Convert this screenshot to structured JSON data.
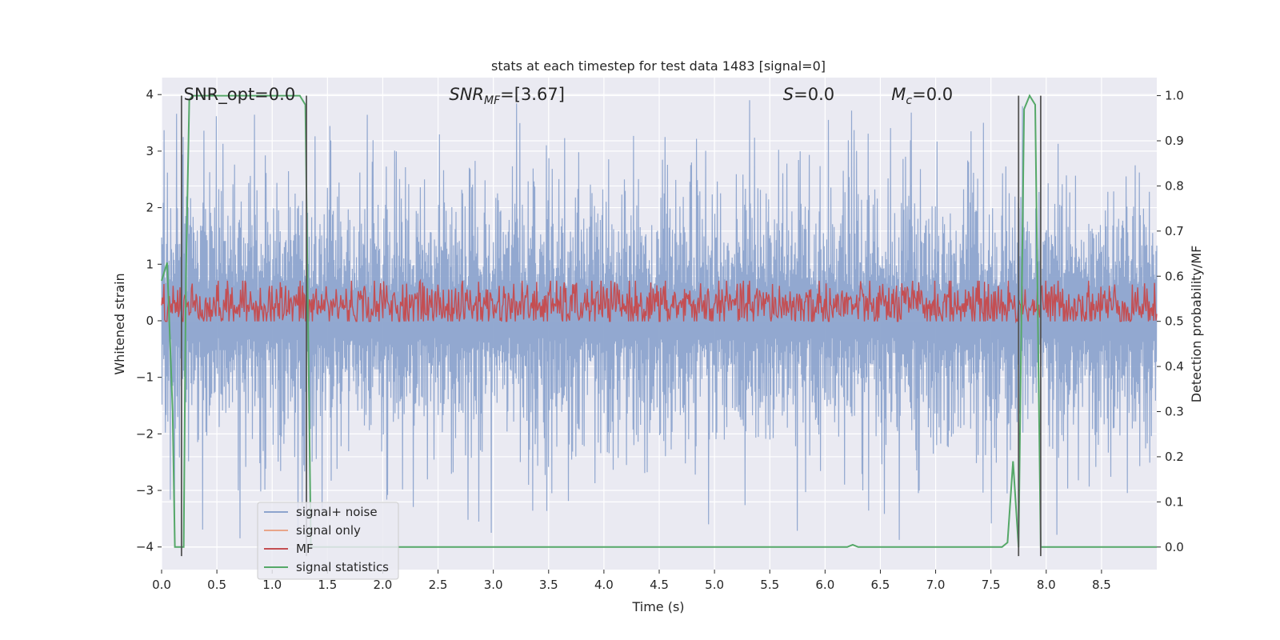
{
  "chart_data": {
    "type": "line",
    "title": "stats at each timestep for test data 1483 [signal=0]",
    "xlabel": "Time (s)",
    "ylabel": "Whitened strain",
    "y2label": "Detection probability/MF",
    "xlim": [
      0.0,
      9.0
    ],
    "ylim": [
      -4.4,
      4.3
    ],
    "y2lim": [
      -0.05,
      1.04
    ],
    "xticks": [
      "0.0",
      "0.5",
      "1.0",
      "1.5",
      "2.0",
      "2.5",
      "3.0",
      "3.5",
      "4.0",
      "4.5",
      "5.0",
      "5.5",
      "6.0",
      "6.5",
      "7.0",
      "7.5",
      "8.0",
      "8.5"
    ],
    "xtick_values": [
      0.0,
      0.5,
      1.0,
      1.5,
      2.0,
      2.5,
      3.0,
      3.5,
      4.0,
      4.5,
      5.0,
      5.5,
      6.0,
      6.5,
      7.0,
      7.5,
      8.0,
      8.5
    ],
    "yticks": [
      "−4",
      "−3",
      "−2",
      "−1",
      "0",
      "1",
      "2",
      "3",
      "4"
    ],
    "ytick_values": [
      -4,
      -3,
      -2,
      -1,
      0,
      1,
      2,
      3,
      4
    ],
    "y2ticks": [
      "0.0",
      "0.1",
      "0.2",
      "0.3",
      "0.4",
      "0.5",
      "0.6",
      "0.7",
      "0.8",
      "0.9",
      "1.0"
    ],
    "y2tick_values": [
      0.0,
      0.1,
      0.2,
      0.3,
      0.4,
      0.5,
      0.6,
      0.7,
      0.8,
      0.9,
      1.0
    ],
    "grid": true,
    "legend_position": "lower-left",
    "annotations": [
      {
        "text": "SNR_opt=0.0",
        "x": 0.2,
        "y": 4.0,
        "italic": false
      },
      {
        "text": "SNR_MF=[3.67]",
        "x": 2.6,
        "y": 4.0,
        "italic": true
      },
      {
        "text": "S=0.0",
        "x": 5.62,
        "y": 4.0,
        "italic": true
      },
      {
        "text": "M_c=0.0",
        "x": 6.6,
        "y": 4.0,
        "italic": true
      }
    ],
    "series": [
      {
        "name": "signal+ noise",
        "color": "#8da4cd",
        "axis": "left",
        "style": "dense-noise",
        "x_range": [
          0.0,
          9.0
        ],
        "envelope_typical": [
          -1.7,
          2.2
        ],
        "peak_extremes": [
          -4.0,
          3.9
        ]
      },
      {
        "name": "signal only",
        "color": "#e8a58a",
        "axis": "left",
        "values": []
      },
      {
        "name": "MF",
        "color": "#c44e52",
        "axis": "left",
        "style": "dense-noise",
        "x_range": [
          0.0,
          9.0
        ],
        "range": [
          0.0,
          1.0
        ],
        "mean": 0.35
      },
      {
        "name": "signal statistics",
        "color": "#55a868",
        "axis": "right",
        "x": [
          0.0,
          0.05,
          0.1,
          0.12,
          0.15,
          0.2,
          0.22,
          0.25,
          0.28,
          1.25,
          1.3,
          1.35,
          1.38,
          1.4,
          6.2,
          6.25,
          6.3,
          7.6,
          7.65,
          7.7,
          7.75,
          7.8,
          7.85,
          7.9,
          7.95,
          8.0,
          9.0
        ],
        "y": [
          0.59,
          0.63,
          0.3,
          0.0,
          0.0,
          0.0,
          0.6,
          0.99,
          1.0,
          1.0,
          0.98,
          0.0,
          0.0,
          0.0,
          0.0,
          0.005,
          0.0,
          0.0,
          0.01,
          0.19,
          0.0,
          0.97,
          1.0,
          0.98,
          0.0,
          0.0,
          0.0
        ]
      }
    ],
    "vertical_lines": [
      {
        "x": 0.18,
        "y_from": -0.02,
        "y_to": 1.0,
        "color": "#555555"
      },
      {
        "x": 1.31,
        "y_from": -0.02,
        "y_to": 1.0,
        "color": "#555555"
      },
      {
        "x": 7.75,
        "y_from": -0.02,
        "y_to": 1.0,
        "color": "#555555"
      },
      {
        "x": 7.95,
        "y_from": -0.02,
        "y_to": 1.0,
        "color": "#555555"
      }
    ]
  }
}
